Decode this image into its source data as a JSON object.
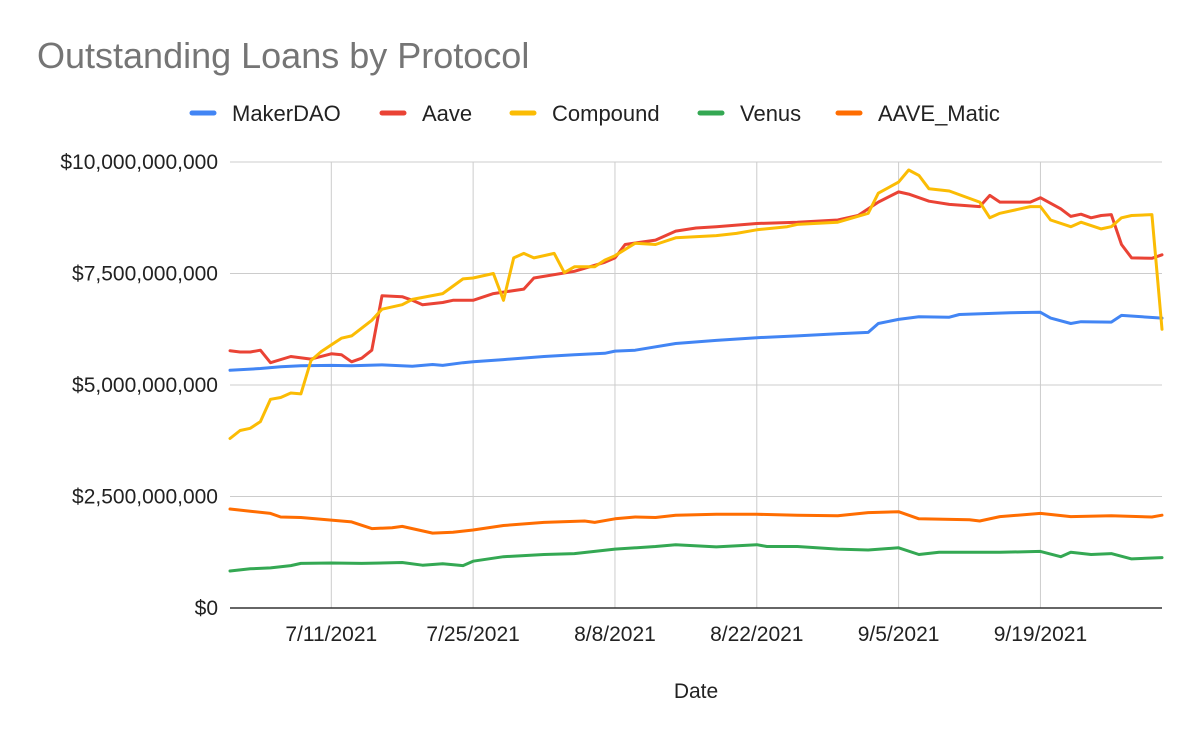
{
  "chart_data": {
    "type": "line",
    "title": "Outstanding Loans by Protocol",
    "xlabel": "Date",
    "ylabel": "",
    "x_start": "2021-07-01",
    "x_end": "2021-10-01",
    "x_ticks": [
      "7/11/2021",
      "7/25/2021",
      "8/8/2021",
      "8/22/2021",
      "9/5/2021",
      "9/19/2021"
    ],
    "x_tick_dates": [
      "2021-07-11",
      "2021-07-25",
      "2021-08-08",
      "2021-08-22",
      "2021-09-05",
      "2021-09-19"
    ],
    "y_ticks": [
      "$0",
      "$2,500,000,000",
      "$5,000,000,000",
      "$7,500,000,000",
      "$10,000,000,000"
    ],
    "y_tick_values": [
      0,
      2500000000,
      5000000000,
      7500000000,
      10000000000
    ],
    "ylim": [
      0,
      10000000000
    ],
    "grid": true,
    "legend_position": "top",
    "series": [
      {
        "name": "MakerDAO",
        "color": "#4285f4",
        "points": [
          [
            "2021-07-01",
            5330000000.0
          ],
          [
            "2021-07-04",
            5370000000.0
          ],
          [
            "2021-07-06",
            5410000000.0
          ],
          [
            "2021-07-08",
            5430000000.0
          ],
          [
            "2021-07-11",
            5440000000.0
          ],
          [
            "2021-07-13",
            5430000000.0
          ],
          [
            "2021-07-16",
            5450000000.0
          ],
          [
            "2021-07-19",
            5420000000.0
          ],
          [
            "2021-07-21",
            5460000000.0
          ],
          [
            "2021-07-22",
            5440000000.0
          ],
          [
            "2021-07-24",
            5500000000.0
          ],
          [
            "2021-07-25",
            5520000000.0
          ],
          [
            "2021-07-28",
            5570000000.0
          ],
          [
            "2021-08-01",
            5640000000.0
          ],
          [
            "2021-08-04",
            5680000000.0
          ],
          [
            "2021-08-07",
            5710000000.0
          ],
          [
            "2021-08-08",
            5760000000.0
          ],
          [
            "2021-08-10",
            5780000000.0
          ],
          [
            "2021-08-14",
            5930000000.0
          ],
          [
            "2021-08-18",
            6000000000.0
          ],
          [
            "2021-08-22",
            6060000000.0
          ],
          [
            "2021-08-26",
            6100000000.0
          ],
          [
            "2021-08-30",
            6150000000.0
          ],
          [
            "2021-09-02",
            6180000000.0
          ],
          [
            "2021-09-03",
            6380000000.0
          ],
          [
            "2021-09-05",
            6470000000.0
          ],
          [
            "2021-09-07",
            6530000000.0
          ],
          [
            "2021-09-10",
            6520000000.0
          ],
          [
            "2021-09-11",
            6580000000.0
          ],
          [
            "2021-09-16",
            6620000000.0
          ],
          [
            "2021-09-19",
            6630000000.0
          ],
          [
            "2021-09-20",
            6500000000.0
          ],
          [
            "2021-09-22",
            6380000000.0
          ],
          [
            "2021-09-23",
            6420000000.0
          ],
          [
            "2021-09-26",
            6410000000.0
          ],
          [
            "2021-09-27",
            6560000000.0
          ],
          [
            "2021-10-01",
            6500000000.0
          ]
        ]
      },
      {
        "name": "Aave",
        "color": "#ea4335",
        "points": [
          [
            "2021-07-01",
            5770000000.0
          ],
          [
            "2021-07-02",
            5740000000.0
          ],
          [
            "2021-07-03",
            5740000000.0
          ],
          [
            "2021-07-04",
            5780000000.0
          ],
          [
            "2021-07-05",
            5500000000.0
          ],
          [
            "2021-07-07",
            5640000000.0
          ],
          [
            "2021-07-09",
            5580000000.0
          ],
          [
            "2021-07-11",
            5700000000.0
          ],
          [
            "2021-07-12",
            5680000000.0
          ],
          [
            "2021-07-13",
            5520000000.0
          ],
          [
            "2021-07-14",
            5600000000.0
          ],
          [
            "2021-07-15",
            5780000000.0
          ],
          [
            "2021-07-16",
            7000000000.0
          ],
          [
            "2021-07-18",
            6980000000.0
          ],
          [
            "2021-07-19",
            6900000000.0
          ],
          [
            "2021-07-20",
            6800000000.0
          ],
          [
            "2021-07-22",
            6850000000.0
          ],
          [
            "2021-07-23",
            6900000000.0
          ],
          [
            "2021-07-25",
            6900000000.0
          ],
          [
            "2021-07-27",
            7050000000.0
          ],
          [
            "2021-07-30",
            7150000000.0
          ],
          [
            "2021-07-31",
            7400000000.0
          ],
          [
            "2021-08-04",
            7550000000.0
          ],
          [
            "2021-08-07",
            7750000000.0
          ],
          [
            "2021-08-08",
            7850000000.0
          ],
          [
            "2021-08-09",
            8150000000.0
          ],
          [
            "2021-08-12",
            8250000000.0
          ],
          [
            "2021-08-14",
            8450000000.0
          ],
          [
            "2021-08-16",
            8520000000.0
          ],
          [
            "2021-08-18",
            8550000000.0
          ],
          [
            "2021-08-22",
            8620000000.0
          ],
          [
            "2021-08-26",
            8650000000.0
          ],
          [
            "2021-08-30",
            8700000000.0
          ],
          [
            "2021-09-01",
            8800000000.0
          ],
          [
            "2021-09-03",
            9100000000.0
          ],
          [
            "2021-09-05",
            9330000000.0
          ],
          [
            "2021-09-06",
            9280000000.0
          ],
          [
            "2021-09-08",
            9120000000.0
          ],
          [
            "2021-09-10",
            9050000000.0
          ],
          [
            "2021-09-13",
            9000000000.0
          ],
          [
            "2021-09-14",
            9250000000.0
          ],
          [
            "2021-09-15",
            9100000000.0
          ],
          [
            "2021-09-18",
            9100000000.0
          ],
          [
            "2021-09-19",
            9200000000.0
          ],
          [
            "2021-09-21",
            8950000000.0
          ],
          [
            "2021-09-22",
            8780000000.0
          ],
          [
            "2021-09-23",
            8830000000.0
          ],
          [
            "2021-09-24",
            8750000000.0
          ],
          [
            "2021-09-25",
            8800000000.0
          ],
          [
            "2021-09-26",
            8820000000.0
          ],
          [
            "2021-09-27",
            8150000000.0
          ],
          [
            "2021-09-28",
            7850000000.0
          ],
          [
            "2021-09-30",
            7840000000.0
          ],
          [
            "2021-10-01",
            7920000000.0
          ]
        ]
      },
      {
        "name": "Compound",
        "color": "#fbbc04",
        "points": [
          [
            "2021-07-01",
            3800000000.0
          ],
          [
            "2021-07-02",
            3980000000.0
          ],
          [
            "2021-07-03",
            4030000000.0
          ],
          [
            "2021-07-04",
            4180000000.0
          ],
          [
            "2021-07-05",
            4680000000.0
          ],
          [
            "2021-07-06",
            4720000000.0
          ],
          [
            "2021-07-07",
            4820000000.0
          ],
          [
            "2021-07-08",
            4800000000.0
          ],
          [
            "2021-07-09",
            5550000000.0
          ],
          [
            "2021-07-10",
            5750000000.0
          ],
          [
            "2021-07-11",
            5900000000.0
          ],
          [
            "2021-07-12",
            6050000000.0
          ],
          [
            "2021-07-13",
            6100000000.0
          ],
          [
            "2021-07-15",
            6450000000.0
          ],
          [
            "2021-07-16",
            6700000000.0
          ],
          [
            "2021-07-18",
            6800000000.0
          ],
          [
            "2021-07-19",
            6920000000.0
          ],
          [
            "2021-07-22",
            7050000000.0
          ],
          [
            "2021-07-24",
            7380000000.0
          ],
          [
            "2021-07-25",
            7400000000.0
          ],
          [
            "2021-07-27",
            7500000000.0
          ],
          [
            "2021-07-28",
            6900000000.0
          ],
          [
            "2021-07-29",
            7850000000.0
          ],
          [
            "2021-07-30",
            7950000000.0
          ],
          [
            "2021-07-31",
            7850000000.0
          ],
          [
            "2021-08-02",
            7950000000.0
          ],
          [
            "2021-08-03",
            7520000000.0
          ],
          [
            "2021-08-04",
            7650000000.0
          ],
          [
            "2021-08-06",
            7650000000.0
          ],
          [
            "2021-08-07",
            7800000000.0
          ],
          [
            "2021-08-08",
            7900000000.0
          ],
          [
            "2021-08-10",
            8180000000.0
          ],
          [
            "2021-08-12",
            8150000000.0
          ],
          [
            "2021-08-14",
            8300000000.0
          ],
          [
            "2021-08-18",
            8350000000.0
          ],
          [
            "2021-08-20",
            8400000000.0
          ],
          [
            "2021-08-22",
            8480000000.0
          ],
          [
            "2021-08-25",
            8550000000.0
          ],
          [
            "2021-08-26",
            8600000000.0
          ],
          [
            "2021-08-30",
            8650000000.0
          ],
          [
            "2021-09-02",
            8850000000.0
          ],
          [
            "2021-09-03",
            9300000000.0
          ],
          [
            "2021-09-05",
            9550000000.0
          ],
          [
            "2021-09-06",
            9820000000.0
          ],
          [
            "2021-09-07",
            9700000000.0
          ],
          [
            "2021-09-08",
            9400000000.0
          ],
          [
            "2021-09-10",
            9350000000.0
          ],
          [
            "2021-09-13",
            9100000000.0
          ],
          [
            "2021-09-14",
            8750000000.0
          ],
          [
            "2021-09-15",
            8850000000.0
          ],
          [
            "2021-09-18",
            9000000000.0
          ],
          [
            "2021-09-19",
            9000000000.0
          ],
          [
            "2021-09-20",
            8700000000.0
          ],
          [
            "2021-09-22",
            8550000000.0
          ],
          [
            "2021-09-23",
            8650000000.0
          ],
          [
            "2021-09-25",
            8500000000.0
          ],
          [
            "2021-09-26",
            8550000000.0
          ],
          [
            "2021-09-27",
            8750000000.0
          ],
          [
            "2021-09-28",
            8800000000.0
          ],
          [
            "2021-09-30",
            8820000000.0
          ],
          [
            "2021-10-01",
            6250000000.0
          ]
        ]
      },
      {
        "name": "Venus",
        "color": "#34a853",
        "points": [
          [
            "2021-07-01",
            830000000.0
          ],
          [
            "2021-07-03",
            880000000.0
          ],
          [
            "2021-07-05",
            900000000.0
          ],
          [
            "2021-07-07",
            950000000.0
          ],
          [
            "2021-07-08",
            1000000000.0
          ],
          [
            "2021-07-11",
            1010000000.0
          ],
          [
            "2021-07-14",
            1000000000.0
          ],
          [
            "2021-07-18",
            1020000000.0
          ],
          [
            "2021-07-20",
            960000000.0
          ],
          [
            "2021-07-22",
            990000000.0
          ],
          [
            "2021-07-24",
            950000000.0
          ],
          [
            "2021-07-25",
            1050000000.0
          ],
          [
            "2021-07-28",
            1150000000.0
          ],
          [
            "2021-08-01",
            1200000000.0
          ],
          [
            "2021-08-04",
            1220000000.0
          ],
          [
            "2021-08-08",
            1320000000.0
          ],
          [
            "2021-08-12",
            1380000000.0
          ],
          [
            "2021-08-14",
            1420000000.0
          ],
          [
            "2021-08-18",
            1370000000.0
          ],
          [
            "2021-08-22",
            1420000000.0
          ],
          [
            "2021-08-23",
            1380000000.0
          ],
          [
            "2021-08-26",
            1380000000.0
          ],
          [
            "2021-08-30",
            1320000000.0
          ],
          [
            "2021-09-02",
            1300000000.0
          ],
          [
            "2021-09-05",
            1350000000.0
          ],
          [
            "2021-09-07",
            1200000000.0
          ],
          [
            "2021-09-09",
            1250000000.0
          ],
          [
            "2021-09-15",
            1250000000.0
          ],
          [
            "2021-09-19",
            1270000000.0
          ],
          [
            "2021-09-21",
            1150000000.0
          ],
          [
            "2021-09-22",
            1250000000.0
          ],
          [
            "2021-09-24",
            1200000000.0
          ],
          [
            "2021-09-26",
            1220000000.0
          ],
          [
            "2021-09-28",
            1100000000.0
          ],
          [
            "2021-10-01",
            1130000000.0
          ]
        ]
      },
      {
        "name": "AAVE_Matic",
        "color": "#ff6d01",
        "points": [
          [
            "2021-07-01",
            2220000000.0
          ],
          [
            "2021-07-03",
            2170000000.0
          ],
          [
            "2021-07-05",
            2120000000.0
          ],
          [
            "2021-07-06",
            2040000000.0
          ],
          [
            "2021-07-08",
            2030000000.0
          ],
          [
            "2021-07-11",
            1970000000.0
          ],
          [
            "2021-07-13",
            1930000000.0
          ],
          [
            "2021-07-15",
            1780000000.0
          ],
          [
            "2021-07-17",
            1800000000.0
          ],
          [
            "2021-07-18",
            1830000000.0
          ],
          [
            "2021-07-19",
            1780000000.0
          ],
          [
            "2021-07-21",
            1680000000.0
          ],
          [
            "2021-07-23",
            1700000000.0
          ],
          [
            "2021-07-25",
            1750000000.0
          ],
          [
            "2021-07-28",
            1850000000.0
          ],
          [
            "2021-08-01",
            1920000000.0
          ],
          [
            "2021-08-05",
            1950000000.0
          ],
          [
            "2021-08-06",
            1920000000.0
          ],
          [
            "2021-08-08",
            2000000000.0
          ],
          [
            "2021-08-10",
            2040000000.0
          ],
          [
            "2021-08-12",
            2030000000.0
          ],
          [
            "2021-08-14",
            2080000000.0
          ],
          [
            "2021-08-18",
            2100000000.0
          ],
          [
            "2021-08-22",
            2100000000.0
          ],
          [
            "2021-08-26",
            2080000000.0
          ],
          [
            "2021-08-30",
            2070000000.0
          ],
          [
            "2021-09-02",
            2140000000.0
          ],
          [
            "2021-09-05",
            2160000000.0
          ],
          [
            "2021-09-07",
            2000000000.0
          ],
          [
            "2021-09-12",
            1980000000.0
          ],
          [
            "2021-09-13",
            1950000000.0
          ],
          [
            "2021-09-15",
            2050000000.0
          ],
          [
            "2021-09-19",
            2120000000.0
          ],
          [
            "2021-09-22",
            2050000000.0
          ],
          [
            "2021-09-26",
            2070000000.0
          ],
          [
            "2021-09-30",
            2040000000.0
          ],
          [
            "2021-10-01",
            2080000000.0
          ]
        ]
      }
    ]
  }
}
